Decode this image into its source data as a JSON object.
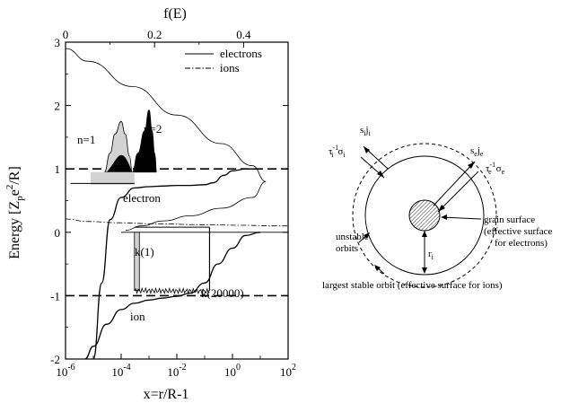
{
  "chart_data": {
    "type": "line",
    "xlabel": "x=r/R-1",
    "ylabel": "Energy [Z",
    "ylabel_p": "p",
    "ylabel_e": "e",
    "ylabel_exp": "2",
    "ylabel_end": "/R]",
    "top_xlabel": "f(E)",
    "x_scale": "log",
    "xlim": [
      1e-06,
      100
    ],
    "ylim": [
      -2,
      3
    ],
    "x_ticks": [
      {
        "base": "10",
        "exp": "-6"
      },
      {
        "base": "10",
        "exp": "-4"
      },
      {
        "base": "10",
        "exp": "-2"
      },
      {
        "base": "10",
        "exp": "0"
      },
      {
        "base": "10",
        "exp": "2"
      }
    ],
    "y_ticks": [
      "-2",
      "-1",
      "0",
      "1",
      "2",
      "3"
    ],
    "top_axis": {
      "xlim": [
        0,
        0.5
      ],
      "ticks": [
        "0",
        "0.2",
        "0.4"
      ]
    },
    "legend": {
      "placement": "top-right",
      "entries": [
        {
          "label": "electrons",
          "style": "solid"
        },
        {
          "label": "ions",
          "style": "dash-dot"
        }
      ]
    },
    "annotations": {
      "n1": "n=1",
      "n2": "n=2",
      "electron": "electron",
      "ion": "ion",
      "k1": "k(1)",
      "k20000": "k(20000)"
    },
    "series": [
      {
        "role": "electron-potential",
        "x": [
          1e-05,
          2e-05,
          4e-05,
          0.0001,
          0.0003,
          0.001,
          0.003,
          0.01,
          0.03,
          0.1,
          0.2,
          0.5,
          1,
          3,
          10
        ],
        "y": [
          -2.0,
          -0.8,
          0.2,
          0.55,
          0.7,
          0.72,
          0.73,
          0.74,
          0.74,
          0.75,
          0.78,
          0.9,
          0.97,
          1.0,
          1.0
        ]
      },
      {
        "role": "ion-potential",
        "x": [
          5e-06,
          1e-05,
          3e-05,
          0.0001,
          0.0003,
          0.001,
          0.003,
          0.01,
          0.03,
          0.1,
          0.3,
          1,
          3,
          10
        ],
        "y": [
          -2.0,
          -1.8,
          -1.45,
          -1.22,
          -1.12,
          -1.07,
          -1.04,
          -1.01,
          -0.96,
          -0.8,
          -0.5,
          -0.25,
          -0.05,
          0.0
        ]
      },
      {
        "role": "electron-distribution",
        "f": [
          0.001,
          0.05,
          0.15,
          0.25,
          0.35,
          0.42,
          0.45,
          0.42,
          0.35,
          0.28,
          0.22,
          0.17,
          0.135
        ],
        "E": [
          2.9,
          2.7,
          2.3,
          1.85,
          1.4,
          1.05,
          0.8,
          0.55,
          0.38,
          0.26,
          0.18,
          0.1,
          0.03
        ]
      },
      {
        "role": "ion-distribution",
        "f": [
          0.0,
          0.05,
          0.12,
          0.2,
          0.3,
          0.4,
          0.47,
          0.5
        ],
        "E": [
          0.21,
          0.17,
          0.15,
          0.135,
          0.12,
          0.11,
          0.1,
          0.1
        ]
      },
      {
        "role": "peak-n1",
        "x": [
          2.5e-05,
          4e-05,
          6e-05,
          0.0001,
          0.00014,
          0.0002,
          0.00025
        ],
        "y": [
          0.95,
          1.25,
          1.55,
          1.75,
          1.55,
          1.2,
          0.95
        ]
      },
      {
        "role": "peak-n2",
        "x": [
          0.00025,
          0.0004,
          0.0007,
          0.001,
          0.0013,
          0.0016,
          0.0019
        ],
        "y": [
          0.95,
          1.25,
          1.6,
          1.93,
          1.6,
          1.25,
          0.95
        ]
      }
    ],
    "dashed_levels": [
      1,
      -1
    ],
    "k_trace": {
      "x_start": 0.0003,
      "x_end": 0.15,
      "level_low": -0.92,
      "level_high": 0.08
    }
  },
  "diagram": {
    "labels": {
      "si_ji": "s",
      "si_ji_sub1": "i",
      "si_ji_j": "j",
      "si_ji_sub2": "i",
      "tau_i": "τ",
      "tau_i_sup": "-1",
      "tau_i_sub": "i",
      "tau_i_sigma": "σ",
      "tau_i_sigma_sub": "i",
      "se_je": "s",
      "se_je_sub1": "e",
      "se_je_j": "j",
      "se_je_sub2": "e",
      "tau_e": "τ",
      "tau_e_sup": "-1",
      "tau_e_sub": "e",
      "tau_e_sigma": "σ",
      "tau_e_sigma_sub": "e",
      "grain_surface": "grain surface",
      "effective_surface_1": "(effective surface",
      "effective_surface_2": "for electrons)",
      "unstable_1": "unstable",
      "unstable_2": "orbits",
      "r_i": "r",
      "r_i_sub": "i",
      "largest_stable": "largest stable orbit (effective surface for ions)"
    }
  }
}
